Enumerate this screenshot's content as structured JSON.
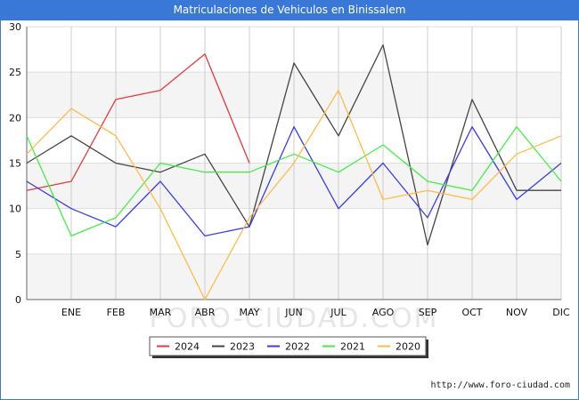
{
  "header": {
    "title": "Matriculaciones de Vehiculos en Binissalem"
  },
  "watermark": "FORO-CIUDAD.COM",
  "credit": "http://www.foro-ciudad.com",
  "chart_data": {
    "type": "line",
    "title": "Matriculaciones de Vehiculos en Binissalem",
    "categories": [
      "",
      "ENE",
      "FEB",
      "MAR",
      "ABR",
      "MAY",
      "JUN",
      "JUL",
      "AGO",
      "SEP",
      "OCT",
      "NOV",
      "DIC"
    ],
    "ylim": [
      0,
      30
    ],
    "yticks": [
      0,
      5,
      10,
      15,
      20,
      25,
      30
    ],
    "grid": true,
    "legend_position": "bottom-center",
    "series": [
      {
        "name": "2024",
        "color": "#e8383d",
        "values": [
          12,
          13,
          22,
          23,
          27,
          15,
          null,
          null,
          null,
          null,
          null,
          null,
          null
        ]
      },
      {
        "name": "2023",
        "color": "#444444",
        "values": [
          15,
          18,
          15,
          14,
          16,
          8,
          26,
          18,
          28,
          6,
          22,
          12,
          12
        ]
      },
      {
        "name": "2022",
        "color": "#3b3be8",
        "values": [
          13,
          10,
          8,
          13,
          7,
          8,
          19,
          10,
          15,
          9,
          19,
          11,
          15
        ]
      },
      {
        "name": "2021",
        "color": "#44ee44",
        "values": [
          18,
          7,
          9,
          15,
          14,
          14,
          16,
          14,
          17,
          13,
          12,
          19,
          13
        ]
      },
      {
        "name": "2020",
        "color": "#ffbb44",
        "values": [
          16,
          21,
          18,
          10,
          0,
          9,
          15,
          23,
          11,
          12,
          11,
          16,
          18
        ]
      }
    ]
  }
}
